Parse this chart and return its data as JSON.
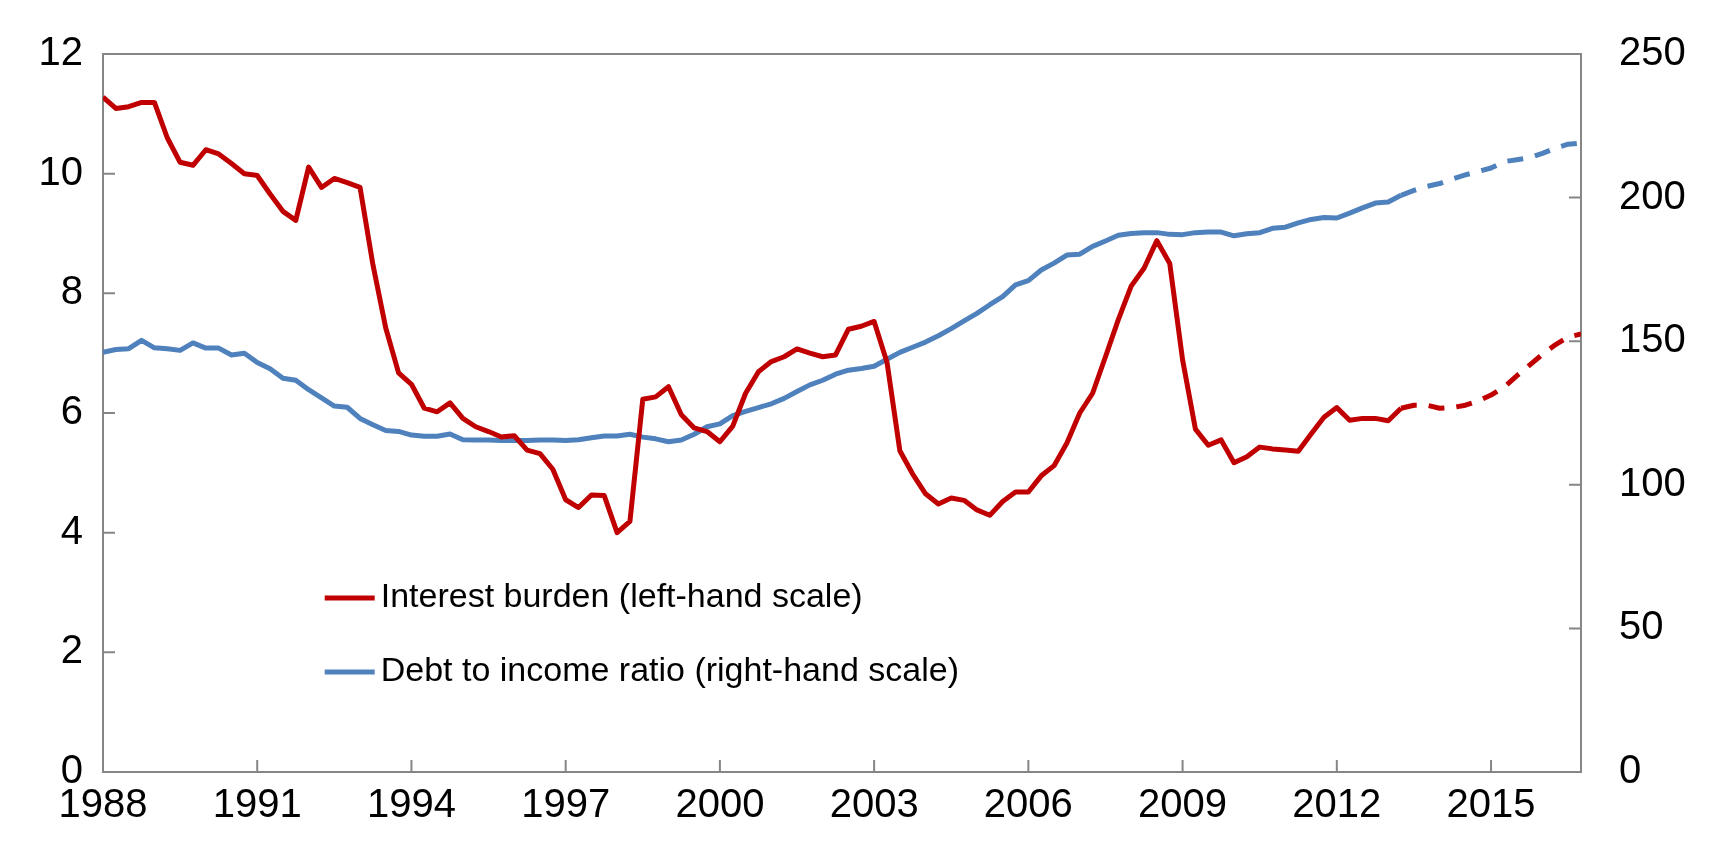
{
  "chart_data": {
    "type": "line",
    "xlim": [
      1988,
      2016.75
    ],
    "xticks": [
      1988,
      1991,
      1994,
      1997,
      2000,
      2003,
      2006,
      2009,
      2012,
      2015
    ],
    "ylim": [
      0,
      12
    ],
    "yticks": [
      0,
      2,
      4,
      6,
      8,
      10,
      12
    ],
    "y2lim": [
      0,
      250
    ],
    "y2ticks": [
      0,
      50,
      100,
      150,
      200,
      250
    ],
    "grid": false,
    "legend": "bottom left",
    "line_style": "solid",
    "series": [
      {
        "name": "Interest burden (left-hand scale)",
        "color": "#c00000",
        "axis": "y",
        "x": [
          1988,
          1988.25,
          1988.5,
          1988.75,
          1989,
          1989.25,
          1989.5,
          1989.75,
          1990,
          1990.25,
          1990.5,
          1990.75,
          1991,
          1991.25,
          1991.5,
          1991.75,
          1992,
          1992.25,
          1992.5,
          1992.75,
          1993,
          1993.25,
          1993.5,
          1993.75,
          1994,
          1994.25,
          1994.5,
          1994.75,
          1995,
          1995.25,
          1995.5,
          1995.75,
          1996,
          1996.25,
          1996.5,
          1996.75,
          1997,
          1997.25,
          1997.5,
          1997.75,
          1998,
          1998.25,
          1998.5,
          1998.75,
          1999,
          1999.25,
          1999.5,
          1999.75,
          2000,
          2000.25,
          2000.5,
          2000.75,
          2001,
          2001.25,
          2001.5,
          2001.75,
          2002,
          2002.25,
          2002.5,
          2002.75,
          2003,
          2003.25,
          2003.5,
          2003.75,
          2004,
          2004.25,
          2004.5,
          2004.75,
          2005,
          2005.25,
          2005.5,
          2005.75,
          2006,
          2006.25,
          2006.5,
          2006.75,
          2007,
          2007.25,
          2007.5,
          2007.75,
          2008,
          2008.25,
          2008.5,
          2008.75,
          2009,
          2009.25,
          2009.5,
          2009.75,
          2010,
          2010.25,
          2010.5,
          2010.75,
          2011,
          2011.25,
          2011.5,
          2011.75,
          2012,
          2012.25,
          2012.5,
          2012.75,
          2013,
          2013.25
        ],
        "values": [
          11.28,
          11.09,
          11.12,
          11.19,
          11.19,
          10.6,
          10.19,
          10.14,
          10.4,
          10.33,
          10.17,
          10.0,
          9.97,
          9.66,
          9.37,
          9.22,
          10.11,
          9.77,
          9.92,
          9.85,
          9.77,
          8.48,
          7.42,
          6.67,
          6.48,
          6.08,
          6.02,
          6.17,
          5.91,
          5.77,
          5.69,
          5.6,
          5.62,
          5.38,
          5.32,
          5.06,
          4.55,
          4.42,
          4.63,
          4.62,
          4.0,
          4.19,
          6.23,
          6.27,
          6.44,
          5.97,
          5.75,
          5.69,
          5.52,
          5.78,
          6.33,
          6.69,
          6.86,
          6.94,
          7.07,
          7.0,
          6.94,
          6.97,
          7.4,
          7.45,
          7.53,
          6.85,
          5.37,
          4.98,
          4.65,
          4.48,
          4.58,
          4.54,
          4.38,
          4.29,
          4.52,
          4.68,
          4.68,
          4.95,
          5.12,
          5.5,
          6.0,
          6.33,
          6.94,
          7.56,
          8.12,
          8.42,
          8.88,
          8.5,
          6.89,
          5.73,
          5.46,
          5.55,
          5.17,
          5.27,
          5.43,
          5.4,
          5.38,
          5.36,
          5.65,
          5.93,
          6.09,
          5.88,
          5.91,
          5.91,
          5.87,
          6.08
        ]
      },
      {
        "color": "#c00000",
        "axis": "y",
        "line_style": "dashed",
        "x": [
          2013.25,
          2013.5,
          2013.75,
          2014,
          2014.25,
          2014.5,
          2014.75,
          2015,
          2015.25,
          2015.5,
          2015.75,
          2016,
          2016.25,
          2016.5,
          2016.75
        ],
        "values": [
          6.08,
          6.13,
          6.13,
          6.08,
          6.09,
          6.13,
          6.2,
          6.3,
          6.43,
          6.62,
          6.8,
          6.98,
          7.14,
          7.27,
          7.32
        ]
      },
      {
        "name": "Debt to income ratio (right-hand scale)",
        "color": "#4f81bd",
        "axis": "y2",
        "x": [
          1988,
          1988.25,
          1988.5,
          1988.75,
          1989,
          1989.25,
          1989.5,
          1989.75,
          1990,
          1990.25,
          1990.5,
          1990.75,
          1991,
          1991.25,
          1991.5,
          1991.75,
          1992,
          1992.25,
          1992.5,
          1992.75,
          1993,
          1993.25,
          1993.5,
          1993.75,
          1994,
          1994.25,
          1994.5,
          1994.75,
          1995,
          1995.25,
          1995.5,
          1995.75,
          1996,
          1996.25,
          1996.5,
          1996.75,
          1997,
          1997.25,
          1997.5,
          1997.75,
          1998,
          1998.25,
          1998.5,
          1998.75,
          1999,
          1999.25,
          1999.5,
          1999.75,
          2000,
          2000.25,
          2000.5,
          2000.75,
          2001,
          2001.25,
          2001.5,
          2001.75,
          2002,
          2002.25,
          2002.5,
          2002.75,
          2003,
          2003.25,
          2003.5,
          2003.75,
          2004,
          2004.25,
          2004.5,
          2004.75,
          2005,
          2005.25,
          2005.5,
          2005.75,
          2006,
          2006.25,
          2006.5,
          2006.75,
          2007,
          2007.25,
          2007.5,
          2007.75,
          2008,
          2008.25,
          2008.5,
          2008.75,
          2009,
          2009.25,
          2009.5,
          2009.75,
          2010,
          2010.25,
          2010.5,
          2010.75,
          2011,
          2011.25,
          2011.5,
          2011.75,
          2012,
          2012.25,
          2012.5,
          2012.75,
          2013,
          2013.25
        ],
        "values": [
          146.1,
          147.1,
          147.4,
          150.3,
          147.7,
          147.4,
          146.8,
          149.4,
          147.6,
          147.6,
          145.2,
          145.8,
          142.6,
          140.4,
          137.1,
          136.4,
          133.1,
          130.3,
          127.4,
          127.0,
          123.1,
          120.9,
          118.9,
          118.6,
          117.3,
          116.9,
          116.9,
          117.7,
          115.7,
          115.6,
          115.6,
          115.4,
          115.4,
          115.4,
          115.6,
          115.6,
          115.4,
          115.7,
          116.4,
          117.0,
          117.0,
          117.6,
          116.6,
          116.0,
          115.0,
          115.6,
          117.6,
          120.2,
          121.2,
          124.1,
          125.6,
          126.9,
          128.2,
          130.1,
          132.5,
          134.8,
          136.4,
          138.5,
          139.9,
          140.5,
          141.3,
          143.7,
          146.1,
          147.9,
          149.7,
          151.9,
          154.4,
          157.1,
          159.7,
          162.7,
          165.5,
          169.6,
          171.1,
          174.8,
          177.2,
          180.0,
          180.3,
          183.0,
          184.9,
          186.9,
          187.5,
          187.8,
          187.8,
          187.2,
          187.1,
          187.8,
          188.0,
          188.0,
          186.7,
          187.4,
          187.8,
          189.3,
          189.7,
          191.2,
          192.4,
          193.1,
          192.9,
          194.6,
          196.4,
          198.1,
          198.5,
          200.8
        ]
      },
      {
        "color": "#4f81bd",
        "axis": "y2",
        "line_style": "dashed",
        "x": [
          2013.25,
          2013.5,
          2013.75,
          2014,
          2014.25,
          2014.5,
          2014.75,
          2015,
          2015.25,
          2015.5,
          2015.75,
          2016,
          2016.25,
          2016.5,
          2016.75
        ],
        "values": [
          200.8,
          202.5,
          203.9,
          204.9,
          206.5,
          207.9,
          209.1,
          210.3,
          212.5,
          213.2,
          213.9,
          215.4,
          217.2,
          218.6,
          219.0
        ]
      }
    ]
  }
}
